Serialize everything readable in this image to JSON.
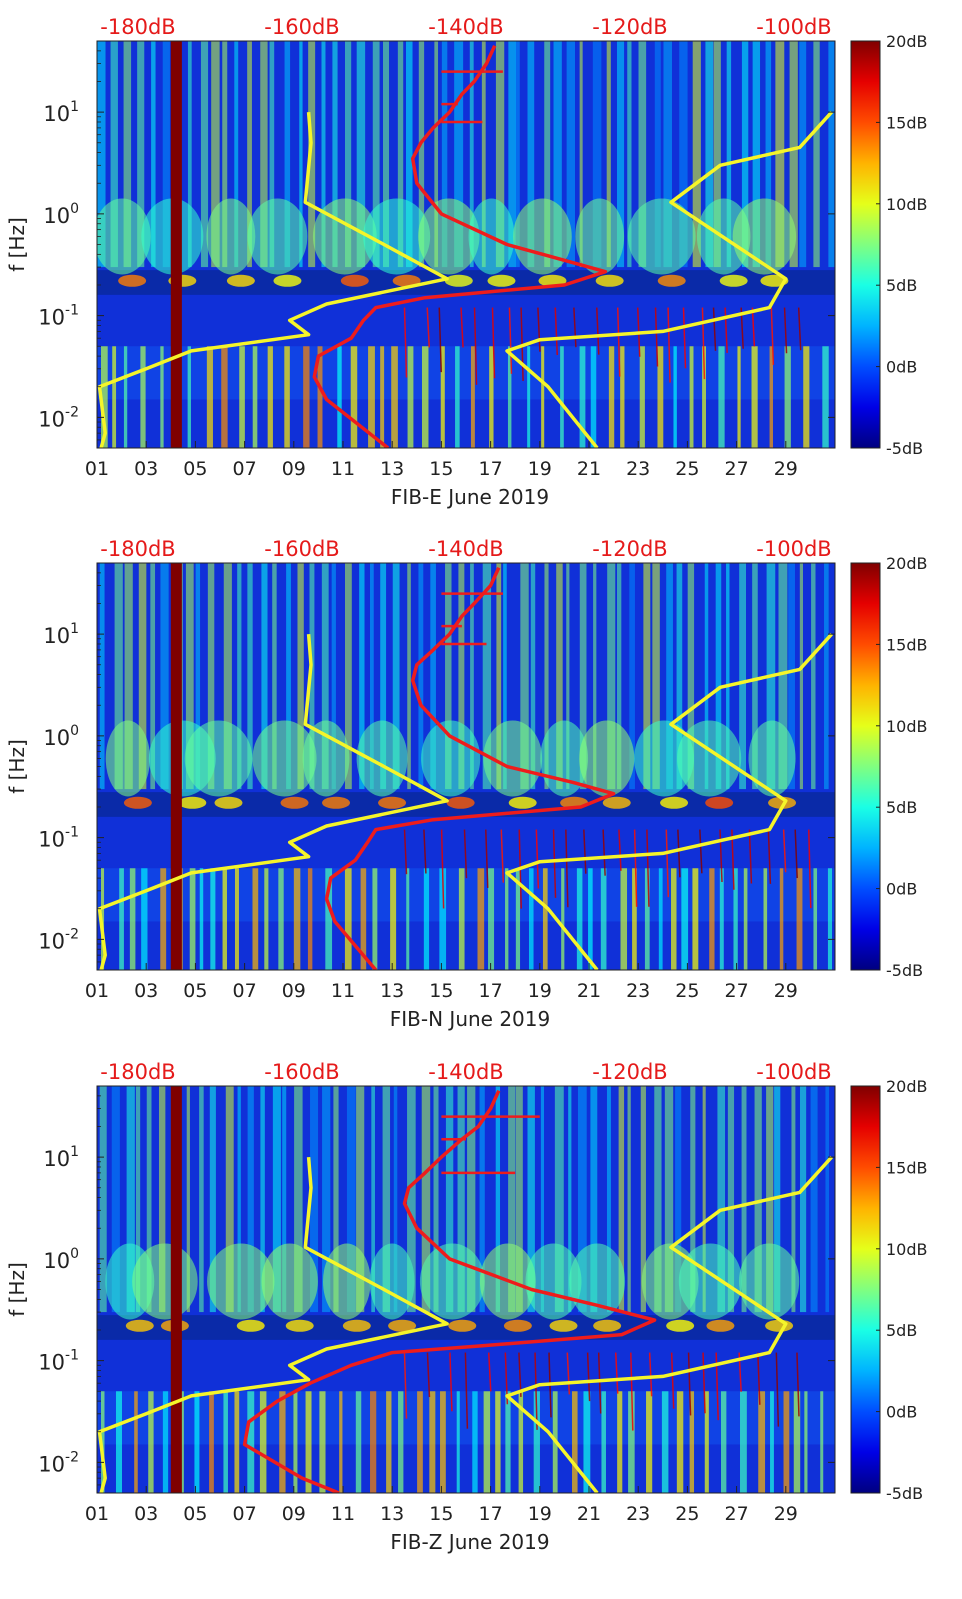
{
  "chart_data": [
    {
      "type": "heatmap",
      "title": "",
      "xlabel": "FIB-E June 2019",
      "ylabel": "f [Hz]",
      "x_ticks": [
        "01",
        "03",
        "05",
        "07",
        "09",
        "11",
        "13",
        "15",
        "17",
        "19",
        "21",
        "23",
        "25",
        "27",
        "29"
      ],
      "xlim": [
        1,
        31
      ],
      "y_scale": "log",
      "ylim": [
        0.005,
        50
      ],
      "y_ticks": [
        {
          "value": 0.01,
          "base": "10",
          "exp": "-2"
        },
        {
          "value": 0.1,
          "base": "10",
          "exp": "-1"
        },
        {
          "value": 1,
          "base": "10",
          "exp": "0"
        },
        {
          "value": 10,
          "base": "10",
          "exp": "1"
        }
      ],
      "top_axis_labels": [
        "-180dB",
        "-160dB",
        "-140dB",
        "-120dB",
        "-100dB"
      ],
      "top_axis_range_db": [
        -185,
        -95
      ],
      "colorbar": {
        "min": -5,
        "max": 20,
        "ticks": [
          "20dB",
          "15dB",
          "10dB",
          "5dB",
          "0dB",
          "-5dB"
        ]
      },
      "series": [
        {
          "name": "noise-model-yellow",
          "color": "#f5f52a",
          "points": [
            [
              -159.2,
              10
            ],
            [
              -158.9,
              5
            ],
            [
              -159.6,
              1.3
            ],
            [
              -150.0,
              0.5
            ],
            [
              -142.3,
              0.23
            ],
            [
              -157.0,
              0.13
            ],
            [
              -161.5,
              0.09
            ],
            [
              -159.2,
              0.065
            ],
            [
              -173.5,
              0.045
            ],
            [
              -179.0,
              0.03
            ],
            [
              -184.7,
              0.02
            ],
            [
              -184.0,
              0.007
            ],
            [
              -184.5,
              0.005
            ]
          ]
        },
        {
          "name": "noise-model-yellow-2",
          "color": "#f5f52a",
          "points": [
            [
              -95.4,
              10
            ],
            [
              -99.3,
              4.5
            ],
            [
              -109.0,
              3.0
            ],
            [
              -115.0,
              1.3
            ],
            [
              -101.0,
              0.23
            ],
            [
              -103.0,
              0.12
            ],
            [
              -116.0,
              0.07
            ],
            [
              -131.0,
              0.058
            ],
            [
              -135.0,
              0.045
            ],
            [
              -130.0,
              0.02
            ],
            [
              -124.0,
              0.005
            ]
          ]
        },
        {
          "name": "psd-red",
          "color": "#ee1c1c",
          "points": [
            [
              -136.5,
              45
            ],
            [
              -137.5,
              30
            ],
            [
              -139.0,
              20
            ],
            [
              -140.5,
              15
            ],
            [
              -142.0,
              10
            ],
            [
              -144.0,
              7
            ],
            [
              -145.5,
              5
            ],
            [
              -146.5,
              3.5
            ],
            [
              -146.0,
              2
            ],
            [
              -143.0,
              1.0
            ],
            [
              -135.0,
              0.5
            ],
            [
              -128.0,
              0.35
            ],
            [
              -123.0,
              0.27
            ],
            [
              -128.0,
              0.2
            ],
            [
              -145.0,
              0.15
            ],
            [
              -151.0,
              0.12
            ],
            [
              -152.5,
              0.09
            ],
            [
              -154.0,
              0.06
            ],
            [
              -158.0,
              0.04
            ],
            [
              -158.5,
              0.025
            ],
            [
              -157.0,
              0.015
            ],
            [
              -149.5,
              0.005
            ]
          ]
        }
      ],
      "spikes": [
        {
          "db": -135.5,
          "f": 25
        },
        {
          "db": -138.0,
          "f": 8
        },
        {
          "db": -141.0,
          "f": 12
        }
      ]
    },
    {
      "type": "heatmap",
      "title": "",
      "xlabel": "FIB-N June 2019",
      "ylabel": "f [Hz]",
      "x_ticks": [
        "01",
        "03",
        "05",
        "07",
        "09",
        "11",
        "13",
        "15",
        "17",
        "19",
        "21",
        "23",
        "25",
        "27",
        "29"
      ],
      "xlim": [
        1,
        31
      ],
      "y_scale": "log",
      "ylim": [
        0.005,
        50
      ],
      "y_ticks": [
        {
          "value": 0.01,
          "base": "10",
          "exp": "-2"
        },
        {
          "value": 0.1,
          "base": "10",
          "exp": "-1"
        },
        {
          "value": 1,
          "base": "10",
          "exp": "0"
        },
        {
          "value": 10,
          "base": "10",
          "exp": "1"
        }
      ],
      "top_axis_labels": [
        "-180dB",
        "-160dB",
        "-140dB",
        "-120dB",
        "-100dB"
      ],
      "top_axis_range_db": [
        -185,
        -95
      ],
      "colorbar": {
        "min": -5,
        "max": 20,
        "ticks": [
          "20dB",
          "15dB",
          "10dB",
          "5dB",
          "0dB",
          "-5dB"
        ]
      },
      "series": [
        {
          "name": "noise-model-yellow",
          "color": "#f5f52a",
          "points": [
            [
              -159.2,
              10
            ],
            [
              -158.9,
              5
            ],
            [
              -159.6,
              1.3
            ],
            [
              -150.0,
              0.5
            ],
            [
              -142.3,
              0.23
            ],
            [
              -157.0,
              0.13
            ],
            [
              -161.5,
              0.09
            ],
            [
              -159.2,
              0.065
            ],
            [
              -173.5,
              0.045
            ],
            [
              -179.0,
              0.03
            ],
            [
              -184.7,
              0.02
            ],
            [
              -184.0,
              0.007
            ],
            [
              -184.5,
              0.005
            ]
          ]
        },
        {
          "name": "noise-model-yellow-2",
          "color": "#f5f52a",
          "points": [
            [
              -95.4,
              10
            ],
            [
              -99.3,
              4.5
            ],
            [
              -109.0,
              3.0
            ],
            [
              -115.0,
              1.3
            ],
            [
              -101.0,
              0.23
            ],
            [
              -103.0,
              0.12
            ],
            [
              -116.0,
              0.07
            ],
            [
              -131.0,
              0.058
            ],
            [
              -135.0,
              0.045
            ],
            [
              -130.0,
              0.02
            ],
            [
              -124.0,
              0.005
            ]
          ]
        },
        {
          "name": "psd-red",
          "color": "#ee1c1c",
          "points": [
            [
              -136.0,
              45
            ],
            [
              -137.0,
              30
            ],
            [
              -139.0,
              20
            ],
            [
              -140.5,
              15
            ],
            [
              -142.0,
              10
            ],
            [
              -144.0,
              7
            ],
            [
              -146.0,
              5
            ],
            [
              -146.5,
              3.5
            ],
            [
              -145.5,
              2
            ],
            [
              -142.0,
              1.0
            ],
            [
              -135.0,
              0.5
            ],
            [
              -127.0,
              0.35
            ],
            [
              -122.0,
              0.27
            ],
            [
              -126.0,
              0.2
            ],
            [
              -144.0,
              0.15
            ],
            [
              -151.0,
              0.12
            ],
            [
              -152.0,
              0.09
            ],
            [
              -153.5,
              0.06
            ],
            [
              -156.5,
              0.04
            ],
            [
              -157.0,
              0.025
            ],
            [
              -156.0,
              0.015
            ],
            [
              -151.0,
              0.005
            ]
          ]
        }
      ],
      "spikes": [
        {
          "db": -135.5,
          "f": 25
        },
        {
          "db": -137.5,
          "f": 8
        },
        {
          "db": -140.5,
          "f": 12
        }
      ]
    },
    {
      "type": "heatmap",
      "title": "",
      "xlabel": "FIB-Z June 2019",
      "ylabel": "f [Hz]",
      "x_ticks": [
        "01",
        "03",
        "05",
        "07",
        "09",
        "11",
        "13",
        "15",
        "17",
        "19",
        "21",
        "23",
        "25",
        "27",
        "29"
      ],
      "xlim": [
        1,
        31
      ],
      "y_scale": "log",
      "ylim": [
        0.005,
        50
      ],
      "y_ticks": [
        {
          "value": 0.01,
          "base": "10",
          "exp": "-2"
        },
        {
          "value": 0.1,
          "base": "10",
          "exp": "-1"
        },
        {
          "value": 1,
          "base": "10",
          "exp": "0"
        },
        {
          "value": 10,
          "base": "10",
          "exp": "1"
        }
      ],
      "top_axis_labels": [
        "-180dB",
        "-160dB",
        "-140dB",
        "-120dB",
        "-100dB"
      ],
      "top_axis_range_db": [
        -185,
        -95
      ],
      "colorbar": {
        "min": -5,
        "max": 20,
        "ticks": [
          "20dB",
          "15dB",
          "10dB",
          "5dB",
          "0dB",
          "-5dB"
        ]
      },
      "series": [
        {
          "name": "noise-model-yellow",
          "color": "#f5f52a",
          "points": [
            [
              -159.2,
              10
            ],
            [
              -158.9,
              5
            ],
            [
              -159.6,
              1.3
            ],
            [
              -150.0,
              0.5
            ],
            [
              -142.3,
              0.23
            ],
            [
              -157.0,
              0.13
            ],
            [
              -161.5,
              0.09
            ],
            [
              -159.2,
              0.065
            ],
            [
              -173.5,
              0.045
            ],
            [
              -179.0,
              0.03
            ],
            [
              -184.7,
              0.02
            ],
            [
              -184.0,
              0.007
            ],
            [
              -184.5,
              0.005
            ]
          ]
        },
        {
          "name": "noise-model-yellow-2",
          "color": "#f5f52a",
          "points": [
            [
              -95.4,
              10
            ],
            [
              -99.3,
              4.5
            ],
            [
              -109.0,
              3.0
            ],
            [
              -115.0,
              1.3
            ],
            [
              -101.0,
              0.23
            ],
            [
              -103.0,
              0.12
            ],
            [
              -116.0,
              0.07
            ],
            [
              -131.0,
              0.058
            ],
            [
              -135.0,
              0.045
            ],
            [
              -130.0,
              0.02
            ],
            [
              -124.0,
              0.005
            ]
          ]
        },
        {
          "name": "psd-red",
          "color": "#ee1c1c",
          "points": [
            [
              -136.0,
              45
            ],
            [
              -137.0,
              30
            ],
            [
              -138.5,
              20
            ],
            [
              -140.5,
              15
            ],
            [
              -143.0,
              10
            ],
            [
              -145.0,
              7
            ],
            [
              -147.0,
              5
            ],
            [
              -147.5,
              3.5
            ],
            [
              -146.0,
              2
            ],
            [
              -142.0,
              1.0
            ],
            [
              -132.0,
              0.5
            ],
            [
              -124.0,
              0.35
            ],
            [
              -117.0,
              0.25
            ],
            [
              -121.0,
              0.18
            ],
            [
              -138.0,
              0.14
            ],
            [
              -149.0,
              0.12
            ],
            [
              -154.0,
              0.09
            ],
            [
              -159.0,
              0.06
            ],
            [
              -163.0,
              0.04
            ],
            [
              -166.5,
              0.025
            ],
            [
              -167.0,
              0.015
            ],
            [
              -160.0,
              0.007
            ],
            [
              -155.5,
              0.005
            ]
          ]
        }
      ],
      "spikes": [
        {
          "db": -131.0,
          "f": 25
        },
        {
          "db": -134.0,
          "f": 7
        },
        {
          "db": -140.0,
          "f": 15
        }
      ]
    }
  ]
}
